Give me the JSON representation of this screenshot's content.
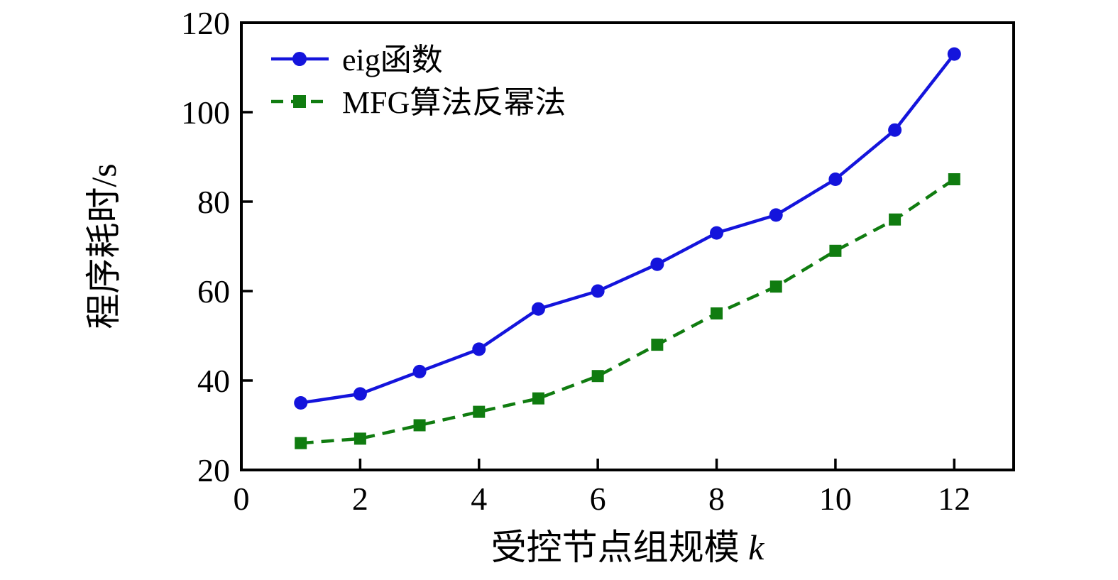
{
  "chart_data": {
    "type": "line",
    "title": "",
    "xlabel": "受控节点组规模",
    "xlabel_var": "k",
    "ylabel": "程序耗时/s",
    "x": [
      1,
      2,
      3,
      4,
      5,
      6,
      7,
      8,
      9,
      10,
      11,
      12
    ],
    "series": [
      {
        "name": "eig函数",
        "color": "#1414dc",
        "marker": "circle",
        "line_style": "solid",
        "values": [
          35,
          37,
          42,
          47,
          56,
          60,
          66,
          73,
          77,
          85,
          96,
          113
        ]
      },
      {
        "name": "MFG算法反幂法",
        "color": "#107c10",
        "marker": "square",
        "line_style": "dashed",
        "values": [
          26,
          27,
          30,
          33,
          36,
          41,
          48,
          55,
          61,
          69,
          76,
          85
        ]
      }
    ],
    "xlim": [
      0,
      13
    ],
    "ylim": [
      20,
      120
    ],
    "xticks": [
      0,
      2,
      4,
      6,
      8,
      10,
      12
    ],
    "yticks": [
      20,
      40,
      60,
      80,
      100,
      120
    ],
    "grid": false,
    "legend_position": "top-left"
  },
  "colors": {
    "background": "#ffffff",
    "axis": "#000000",
    "text": "#000000"
  }
}
